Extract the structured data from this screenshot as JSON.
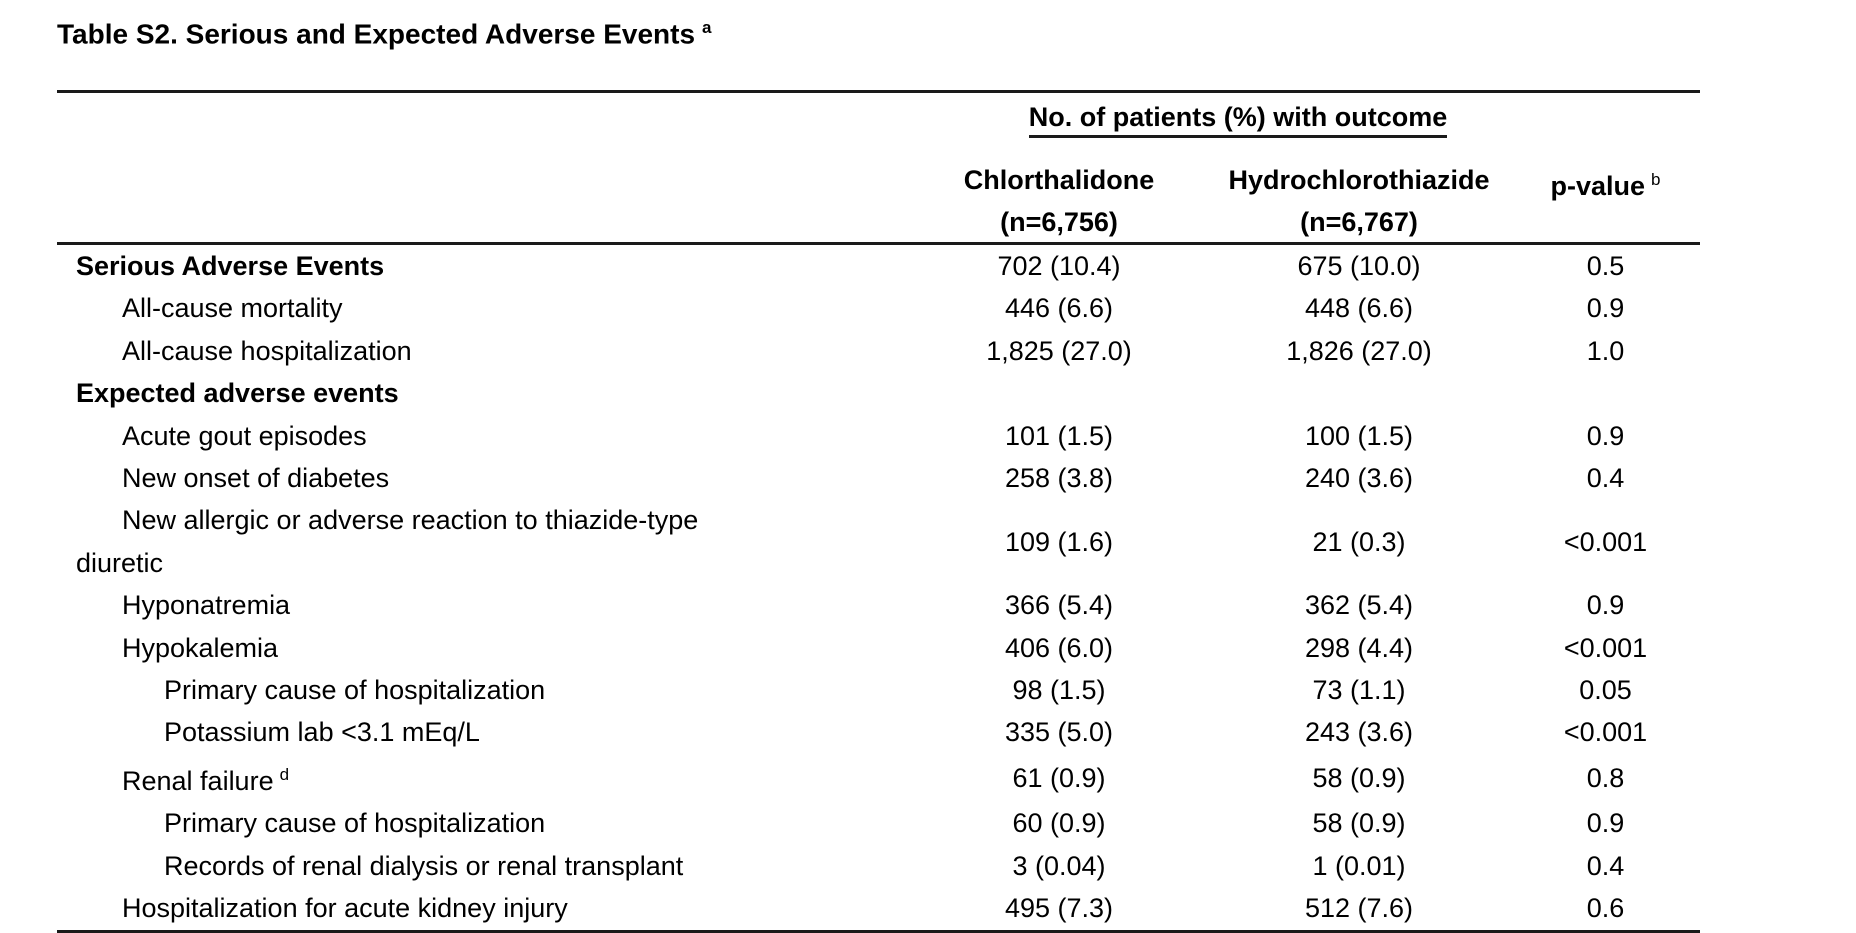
{
  "page": {
    "title": "Table S2. Serious and Expected Adverse Events",
    "title_superscript": "a"
  },
  "colors": {
    "background": "#ffffff",
    "text": "#000000",
    "rule": "#1a1a1a"
  },
  "table": {
    "spanner_header": "No. of patients (%) with outcome",
    "columns": {
      "col1_label": "Chlorthalidone",
      "col1_sub": "(n=6,756)",
      "col2_label": "Hydrochlorothiazide",
      "col2_sub": "(n=6,767)",
      "col3_label": "p-value",
      "col3_superscript": "b"
    },
    "rows": [
      {
        "label": "Serious Adverse Events",
        "bold": true,
        "indent": 0,
        "chlorthalidone": "702 (10.4)",
        "hydrochlorothiazide": "675 (10.0)",
        "p_value": "0.5"
      },
      {
        "label": "All-cause mortality",
        "bold": false,
        "indent": 1,
        "chlorthalidone": "446 (6.6)",
        "hydrochlorothiazide": "448 (6.6)",
        "p_value": "0.9"
      },
      {
        "label": "All-cause hospitalization",
        "bold": false,
        "indent": 1,
        "chlorthalidone": "1,825 (27.0)",
        "hydrochlorothiazide": "1,826 (27.0)",
        "p_value": "1.0"
      },
      {
        "label": "Expected adverse events",
        "bold": true,
        "indent": 0,
        "chlorthalidone": "",
        "hydrochlorothiazide": "",
        "p_value": ""
      },
      {
        "label": "Acute gout episodes",
        "bold": false,
        "indent": 1,
        "chlorthalidone": "101 (1.5)",
        "hydrochlorothiazide": "100 (1.5)",
        "p_value": "0.9"
      },
      {
        "label": "New onset of diabetes",
        "bold": false,
        "indent": 1,
        "chlorthalidone": "258 (3.8)",
        "hydrochlorothiazide": "240 (3.6)",
        "p_value": "0.4"
      },
      {
        "label": "New allergic or adverse reaction to thiazide-type",
        "label_continuation": "diuretic",
        "continuation_indent": 0,
        "bold": false,
        "indent": 1,
        "chlorthalidone": "109 (1.6)",
        "hydrochlorothiazide": "21 (0.3)",
        "p_value": "<0.001"
      },
      {
        "label": "Hyponatremia",
        "bold": false,
        "indent": 1,
        "chlorthalidone": "366 (5.4)",
        "hydrochlorothiazide": "362 (5.4)",
        "p_value": "0.9"
      },
      {
        "label": "Hypokalemia",
        "bold": false,
        "indent": 1,
        "chlorthalidone": "406 (6.0)",
        "hydrochlorothiazide": "298 (4.4)",
        "p_value": "<0.001"
      },
      {
        "label": "Primary cause of hospitalization",
        "bold": false,
        "indent": 2,
        "chlorthalidone": "98 (1.5)",
        "hydrochlorothiazide": "73 (1.1)",
        "p_value": "0.05"
      },
      {
        "label": "Potassium lab <3.1 mEq/L",
        "bold": false,
        "indent": 2,
        "chlorthalidone": "335 (5.0)",
        "hydrochlorothiazide": "243 (3.6)",
        "p_value": "<0.001"
      },
      {
        "label": "Renal failure",
        "label_superscript": "d",
        "bold": false,
        "indent": 1,
        "chlorthalidone": "61 (0.9)",
        "hydrochlorothiazide": "58 (0.9)",
        "p_value": "0.8"
      },
      {
        "label": "Primary cause of hospitalization",
        "bold": false,
        "indent": 2,
        "chlorthalidone": "60 (0.9)",
        "hydrochlorothiazide": "58 (0.9)",
        "p_value": "0.9"
      },
      {
        "label": "Records of renal dialysis or renal transplant",
        "bold": false,
        "indent": 2,
        "chlorthalidone": "3 (0.04)",
        "hydrochlorothiazide": "1 (0.01)",
        "p_value": "0.4"
      },
      {
        "label": "Hospitalization for acute kidney injury",
        "bold": false,
        "indent": 1,
        "chlorthalidone": "495 (7.3)",
        "hydrochlorothiazide": "512 (7.6)",
        "p_value": "0.6"
      }
    ]
  }
}
